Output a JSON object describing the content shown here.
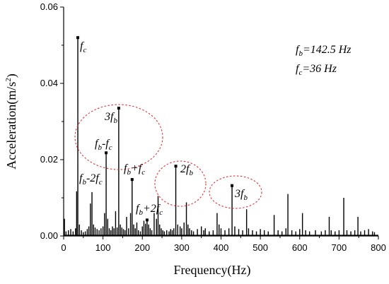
{
  "chart_data": {
    "type": "line",
    "xlabel": "Frequency(Hz)",
    "ylabel_main": "Acceleration(m/s",
    "ylabel_sup": "2",
    "ylabel_tail": ")",
    "xlim": [
      0,
      800
    ],
    "ylim": [
      0,
      0.06
    ],
    "x_ticks": [
      0,
      100,
      200,
      300,
      400,
      500,
      600,
      700,
      800
    ],
    "y_ticks": [
      0.0,
      0.02,
      0.04,
      0.06
    ],
    "y_tick_labels": [
      "0.00",
      "0.02",
      "0.04",
      "0.06"
    ],
    "grid": false,
    "series": [
      {
        "x": [
          2,
          6,
          12,
          18,
          24,
          30,
          33,
          36,
          40,
          45,
          50,
          55,
          60,
          64,
          68,
          72,
          76,
          80,
          85,
          90,
          95,
          100,
          104,
          108,
          112,
          116,
          120,
          124,
          128,
          132,
          136,
          140,
          144,
          148,
          152,
          156,
          160,
          165,
          170,
          174,
          178,
          182,
          186,
          190,
          195,
          200,
          204,
          208,
          212,
          216,
          220,
          224,
          230,
          236,
          240,
          244,
          248,
          252,
          256,
          262,
          268,
          272,
          276,
          280,
          285,
          290,
          296,
          300,
          306,
          312,
          316,
          320,
          325,
          330,
          340,
          350,
          356,
          360,
          370,
          380,
          390,
          395,
          400,
          410,
          420,
          428,
          435,
          445,
          455,
          465,
          470,
          480,
          490,
          500,
          510,
          520,
          535,
          545,
          555,
          565,
          570,
          580,
          590,
          600,
          607,
          615,
          625,
          640,
          655,
          665,
          675,
          680,
          690,
          700,
          712,
          720,
          730,
          740,
          748,
          755,
          765,
          775,
          785,
          790
        ],
        "y": [
          0.0045,
          0.0012,
          0.0015,
          0.0018,
          0.0012,
          0.002,
          0.0117,
          0.052,
          0.003,
          0.0015,
          0.001,
          0.0012,
          0.0018,
          0.0025,
          0.0085,
          0.0115,
          0.003,
          0.0022,
          0.0018,
          0.0015,
          0.002,
          0.0025,
          0.006,
          0.0218,
          0.0045,
          0.002,
          0.0015,
          0.0025,
          0.002,
          0.0065,
          0.0022,
          0.0335,
          0.003,
          0.0022,
          0.0018,
          0.0015,
          0.005,
          0.002,
          0.006,
          0.0148,
          0.003,
          0.002,
          0.0035,
          0.0015,
          0.0012,
          0.0025,
          0.004,
          0.0032,
          0.0042,
          0.003,
          0.002,
          0.0015,
          0.006,
          0.0045,
          0.0105,
          0.003,
          0.002,
          0.0015,
          0.0012,
          0.0015,
          0.0012,
          0.0018,
          0.0015,
          0.002,
          0.0183,
          0.003,
          0.0025,
          0.002,
          0.0035,
          0.0088,
          0.003,
          0.002,
          0.0015,
          0.0012,
          0.0018,
          0.0025,
          0.0015,
          0.002,
          0.0012,
          0.0015,
          0.006,
          0.003,
          0.002,
          0.0015,
          0.002,
          0.0132,
          0.0025,
          0.0018,
          0.0015,
          0.007,
          0.002,
          0.0015,
          0.0012,
          0.0018,
          0.0015,
          0.0012,
          0.0055,
          0.0015,
          0.0012,
          0.002,
          0.011,
          0.0015,
          0.0012,
          0.0018,
          0.006,
          0.0015,
          0.0012,
          0.0015,
          0.0012,
          0.0015,
          0.005,
          0.0015,
          0.0012,
          0.0015,
          0.01,
          0.0015,
          0.0012,
          0.0015,
          0.005,
          0.0012,
          0.0015,
          0.0018,
          0.0012,
          0.001
        ]
      }
    ],
    "peaks": [
      {
        "id": "fc",
        "x": 36,
        "y": 0.052
      },
      {
        "id": "fb-fc",
        "x": 108,
        "y": 0.0218
      },
      {
        "id": "fb",
        "x": 140,
        "y": 0.0335
      },
      {
        "id": "fb+fc",
        "x": 174,
        "y": 0.0148
      },
      {
        "id": "fb+2fc",
        "x": 212,
        "y": 0.0042
      },
      {
        "id": "2fb",
        "x": 285,
        "y": 0.0183
      },
      {
        "id": "3fb",
        "x": 428,
        "y": 0.0132
      }
    ],
    "annotations": [
      {
        "id": "ann-fc",
        "main": "f",
        "sub": "c",
        "rest": ""
      },
      {
        "id": "ann-3fb-circle",
        "main": "3f",
        "sub": "b",
        "rest": ""
      },
      {
        "id": "ann-fb-minus-fc",
        "main": "f",
        "sub": "b",
        "rest": "-f",
        "sub2": "c"
      },
      {
        "id": "ann-fb-minus-2fc",
        "main": "f",
        "sub": "b",
        "rest": "-2f",
        "sub2": "c"
      },
      {
        "id": "ann-fb-plus-fc",
        "main": "f",
        "sub": "b",
        "rest": "+f",
        "sub2": "c"
      },
      {
        "id": "ann-fb-plus-2fc",
        "main": "f",
        "sub": "b",
        "rest": "+2f",
        "sub2": "c"
      },
      {
        "id": "ann-2fb",
        "main": "2f",
        "sub": "b",
        "rest": ""
      },
      {
        "id": "ann-3fb",
        "main": "3f",
        "sub": "b",
        "rest": ""
      }
    ],
    "notes": [
      {
        "main": "f",
        "sub": "b",
        "rest": "=142.5 Hz"
      },
      {
        "main": "f",
        "sub": "c",
        "rest": "=36 Hz"
      }
    ],
    "colors": {
      "line": "#000000",
      "circle": "#e83030"
    }
  }
}
